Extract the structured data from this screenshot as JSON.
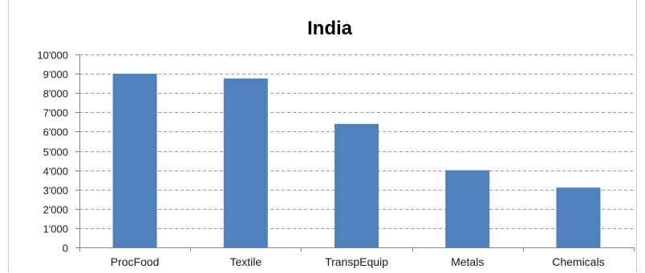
{
  "chart_data": {
    "type": "bar",
    "title": "India",
    "xlabel": "",
    "ylabel": "",
    "categories": [
      "ProcFood",
      "Textile",
      "TranspEquip",
      "Metals",
      "Chemicals"
    ],
    "values": [
      9000,
      8750,
      6400,
      4000,
      3100
    ],
    "ylim": [
      0,
      10000
    ],
    "yticks": [
      0,
      1000,
      2000,
      3000,
      4000,
      5000,
      6000,
      7000,
      8000,
      9000,
      10000
    ],
    "ytick_labels": [
      "0",
      "1'000",
      "2'000",
      "3'000",
      "4'000",
      "5'000",
      "6'000",
      "7'000",
      "8'000",
      "9'000",
      "10'000"
    ],
    "grid": true,
    "legend": "none",
    "bar_color": "#4f81bd"
  }
}
